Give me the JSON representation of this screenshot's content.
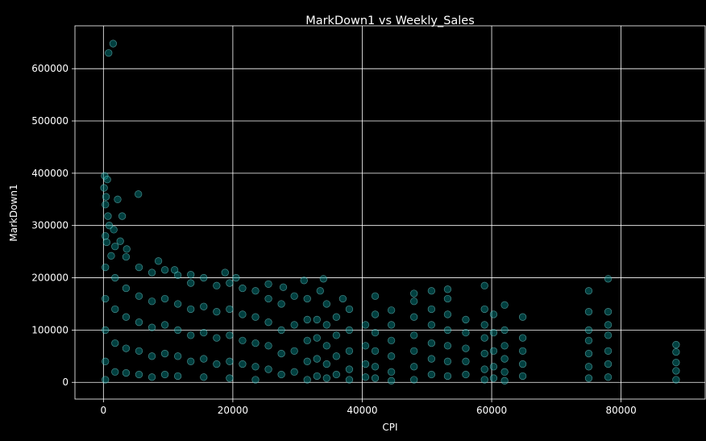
{
  "chart_data": {
    "type": "scatter",
    "title": "MarkDown1 vs Weekly_Sales",
    "xlabel": "CPI",
    "ylabel": "MarkDown1",
    "xlim": [
      -4400,
      93000
    ],
    "ylim": [
      -32000,
      682000
    ],
    "x_ticks": [
      0,
      20000,
      40000,
      60000,
      80000
    ],
    "x_tick_labels": [
      "0",
      "20000",
      "40000",
      "60000",
      "80000"
    ],
    "y_ticks": [
      0,
      100000,
      200000,
      300000,
      400000,
      500000,
      600000
    ],
    "y_tick_labels": [
      "0",
      "100000",
      "200000",
      "300000",
      "400000",
      "500000",
      "600000"
    ],
    "grid": true,
    "colors": {
      "background": "#000000",
      "marker_fill": "#008b8b",
      "marker_edge": "#7fe0e0",
      "text": "#ffffff"
    },
    "series": [
      {
        "values": [
          [
            800,
            630000
          ],
          [
            1500,
            648000
          ],
          [
            200,
            395000
          ],
          [
            600,
            388000
          ],
          [
            100,
            372000
          ],
          [
            400,
            355000
          ],
          [
            2200,
            350000
          ],
          [
            5400,
            360000
          ],
          [
            300,
            340000
          ],
          [
            700,
            318000
          ],
          [
            2900,
            318000
          ],
          [
            900,
            300000
          ],
          [
            1600,
            292000
          ],
          [
            500,
            268000
          ],
          [
            2600,
            270000
          ],
          [
            3600,
            255000
          ],
          [
            1200,
            242000
          ],
          [
            8500,
            232000
          ],
          [
            11000,
            215000
          ],
          [
            13500,
            206000
          ],
          [
            18800,
            210000
          ],
          [
            20500,
            200000
          ],
          [
            25500,
            188000
          ],
          [
            27800,
            182000
          ],
          [
            31000,
            195000
          ],
          [
            34000,
            198000
          ],
          [
            33500,
            175000
          ],
          [
            37000,
            160000
          ],
          [
            42000,
            165000
          ],
          [
            44500,
            138000
          ],
          [
            48000,
            170000
          ],
          [
            48000,
            155000
          ],
          [
            50700,
            175000
          ],
          [
            53200,
            178000
          ],
          [
            53200,
            160000
          ],
          [
            56000,
            120000
          ],
          [
            58900,
            185000
          ],
          [
            58900,
            140000
          ],
          [
            60300,
            130000
          ],
          [
            62000,
            148000
          ],
          [
            64800,
            125000
          ],
          [
            75000,
            175000
          ],
          [
            75000,
            135000
          ],
          [
            78000,
            198000
          ],
          [
            78000,
            135000
          ],
          [
            88500,
            72000
          ],
          [
            88500,
            58000
          ],
          [
            88500,
            38000
          ],
          [
            88500,
            22000
          ],
          [
            88500,
            5000
          ],
          [
            75000,
            100000
          ],
          [
            75000,
            80000
          ],
          [
            75000,
            55000
          ],
          [
            75000,
            30000
          ],
          [
            75000,
            8000
          ],
          [
            78000,
            110000
          ],
          [
            78000,
            90000
          ],
          [
            78000,
            60000
          ],
          [
            78000,
            35000
          ],
          [
            78000,
            10000
          ],
          [
            64800,
            85000
          ],
          [
            64800,
            60000
          ],
          [
            64800,
            35000
          ],
          [
            64800,
            12000
          ],
          [
            62000,
            100000
          ],
          [
            62000,
            70000
          ],
          [
            62000,
            45000
          ],
          [
            62000,
            20000
          ],
          [
            62000,
            3000
          ],
          [
            60300,
            95000
          ],
          [
            60300,
            60000
          ],
          [
            60300,
            30000
          ],
          [
            60300,
            8000
          ],
          [
            58900,
            110000
          ],
          [
            58900,
            85000
          ],
          [
            58900,
            55000
          ],
          [
            58900,
            25000
          ],
          [
            58900,
            5000
          ],
          [
            56000,
            95000
          ],
          [
            56000,
            65000
          ],
          [
            56000,
            40000
          ],
          [
            56000,
            15000
          ],
          [
            53200,
            130000
          ],
          [
            53200,
            100000
          ],
          [
            53200,
            70000
          ],
          [
            53200,
            40000
          ],
          [
            53200,
            12000
          ],
          [
            50700,
            140000
          ],
          [
            50700,
            110000
          ],
          [
            50700,
            75000
          ],
          [
            50700,
            45000
          ],
          [
            50700,
            15000
          ],
          [
            48000,
            125000
          ],
          [
            48000,
            90000
          ],
          [
            48000,
            60000
          ],
          [
            48000,
            30000
          ],
          [
            48000,
            5000
          ],
          [
            44500,
            110000
          ],
          [
            44500,
            80000
          ],
          [
            44500,
            50000
          ],
          [
            44500,
            20000
          ],
          [
            44500,
            3000
          ],
          [
            42000,
            130000
          ],
          [
            42000,
            95000
          ],
          [
            42000,
            60000
          ],
          [
            42000,
            30000
          ],
          [
            42000,
            8000
          ],
          [
            40500,
            110000
          ],
          [
            40500,
            70000
          ],
          [
            40500,
            35000
          ],
          [
            40500,
            10000
          ],
          [
            38000,
            140000
          ],
          [
            38000,
            100000
          ],
          [
            38000,
            60000
          ],
          [
            38000,
            25000
          ],
          [
            38000,
            5000
          ],
          [
            36000,
            125000
          ],
          [
            36000,
            90000
          ],
          [
            36000,
            50000
          ],
          [
            36000,
            15000
          ],
          [
            34500,
            150000
          ],
          [
            34500,
            110000
          ],
          [
            34500,
            70000
          ],
          [
            34500,
            35000
          ],
          [
            34500,
            8000
          ],
          [
            33000,
            120000
          ],
          [
            33000,
            85000
          ],
          [
            33000,
            45000
          ],
          [
            33000,
            12000
          ],
          [
            31500,
            160000
          ],
          [
            31500,
            120000
          ],
          [
            31500,
            80000
          ],
          [
            31500,
            40000
          ],
          [
            31500,
            5000
          ],
          [
            29500,
            165000
          ],
          [
            29500,
            110000
          ],
          [
            29500,
            60000
          ],
          [
            29500,
            20000
          ],
          [
            27500,
            150000
          ],
          [
            27500,
            100000
          ],
          [
            27500,
            55000
          ],
          [
            27500,
            15000
          ],
          [
            25500,
            160000
          ],
          [
            25500,
            115000
          ],
          [
            25500,
            70000
          ],
          [
            25500,
            25000
          ],
          [
            23500,
            175000
          ],
          [
            23500,
            125000
          ],
          [
            23500,
            75000
          ],
          [
            23500,
            30000
          ],
          [
            23500,
            5000
          ],
          [
            21500,
            180000
          ],
          [
            21500,
            130000
          ],
          [
            21500,
            80000
          ],
          [
            21500,
            35000
          ],
          [
            19500,
            190000
          ],
          [
            19500,
            140000
          ],
          [
            19500,
            90000
          ],
          [
            19500,
            40000
          ],
          [
            19500,
            8000
          ],
          [
            17500,
            185000
          ],
          [
            17500,
            135000
          ],
          [
            17500,
            85000
          ],
          [
            17500,
            35000
          ],
          [
            15500,
            200000
          ],
          [
            15500,
            145000
          ],
          [
            15500,
            95000
          ],
          [
            15500,
            45000
          ],
          [
            15500,
            10000
          ],
          [
            13500,
            190000
          ],
          [
            13500,
            140000
          ],
          [
            13500,
            90000
          ],
          [
            13500,
            40000
          ],
          [
            11500,
            205000
          ],
          [
            11500,
            150000
          ],
          [
            11500,
            100000
          ],
          [
            11500,
            50000
          ],
          [
            11500,
            12000
          ],
          [
            9500,
            215000
          ],
          [
            9500,
            160000
          ],
          [
            9500,
            110000
          ],
          [
            9500,
            55000
          ],
          [
            9500,
            15000
          ],
          [
            7500,
            210000
          ],
          [
            7500,
            155000
          ],
          [
            7500,
            105000
          ],
          [
            7500,
            50000
          ],
          [
            7500,
            10000
          ],
          [
            5500,
            220000
          ],
          [
            5500,
            165000
          ],
          [
            5500,
            115000
          ],
          [
            5500,
            60000
          ],
          [
            5500,
            15000
          ],
          [
            3500,
            240000
          ],
          [
            3500,
            180000
          ],
          [
            3500,
            125000
          ],
          [
            3500,
            65000
          ],
          [
            3500,
            18000
          ],
          [
            1800,
            260000
          ],
          [
            1800,
            200000
          ],
          [
            1800,
            140000
          ],
          [
            1800,
            75000
          ],
          [
            1800,
            20000
          ],
          [
            300,
            280000
          ],
          [
            300,
            220000
          ],
          [
            300,
            160000
          ],
          [
            300,
            100000
          ],
          [
            300,
            40000
          ],
          [
            300,
            5000
          ]
        ]
      }
    ]
  }
}
